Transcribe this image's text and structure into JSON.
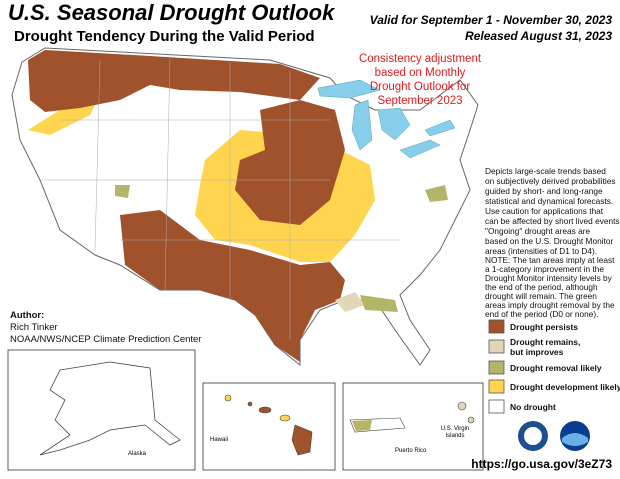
{
  "header": {
    "title": "U.S. Seasonal Drought Outlook",
    "subtitle": "Drought Tendency During the Valid Period",
    "valid": "Valid for September 1 - November 30, 2023",
    "released": "Released August 31, 2023"
  },
  "annotation": [
    "Consistency adjustment",
    "based on Monthly",
    "Drought Outlook for",
    "September 2023"
  ],
  "description": [
    "Depicts large-scale trends based",
    "on subjectively derived probabilities",
    "guided by short- and long-range",
    "statistical and dynamical forecasts.",
    "Use caution for applications that",
    "can be affected by short lived events.",
    "\"Ongoing\" drought areas are",
    "based on the U.S. Drought Monitor",
    "areas (intensities of D1 to D4)."
  ],
  "note": [
    "NOTE: The tan areas imply at least",
    "a 1-category improvement in the",
    "Drought Monitor intensity levels by",
    "the end of the period, although",
    "drought will remain. The green",
    "areas imply drought removal by the",
    "end of the period (D0 or none)."
  ],
  "legend": [
    {
      "label": [
        "Drought persists"
      ]
    },
    {
      "label": [
        "Drought remains,",
        "but improves"
      ]
    },
    {
      "label": [
        "Drought removal likely"
      ]
    },
    {
      "label": [
        "Drought development likely"
      ]
    },
    {
      "label": [
        "No drought"
      ]
    }
  ],
  "author": [
    "Author:",
    "Rich Tinker",
    "NOAA/NWS/NCEP Climate Prediction Center"
  ],
  "insets": {
    "alaska": "Alaska",
    "hawaii": "Hawaii",
    "puerto_rico": "Puerto Rico",
    "virgin_islands": [
      "U.S. Virgin",
      "Islands"
    ]
  },
  "url": "https://go.usa.gov/3eZ73"
}
